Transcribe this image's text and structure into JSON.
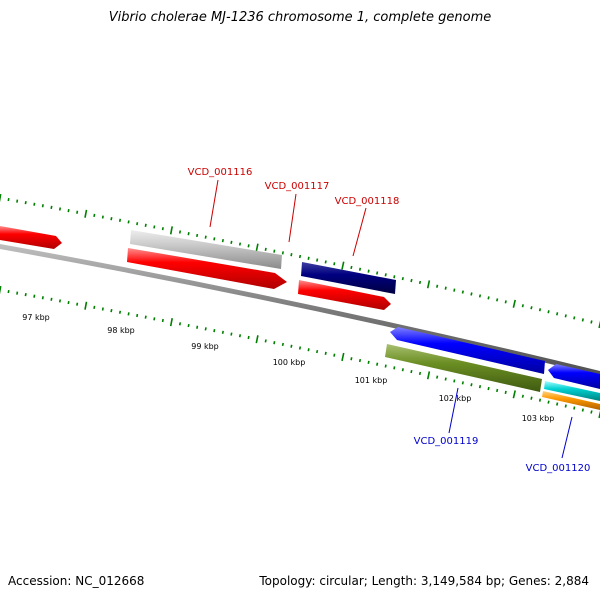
{
  "title": "Vibrio cholerae MJ-1236 chromosome 1, complete genome",
  "footer": {
    "accession": "Accession: NC_012668",
    "summary": "Topology: circular; Length: 3,149,584 bp; Genes: 2,884"
  },
  "colors": {
    "red_gene": "#ff0000",
    "grey_gene": "#c0c0c0",
    "navy_gene": "#000080",
    "blue_gene": "#0000ff",
    "olive_gene": "#6b8e23",
    "cyan_gene": "#00cccc",
    "orange_gene": "#ff9900",
    "tick_green": "#008000",
    "backbone": "#808080",
    "label_red": "#cc0000",
    "label_blue": "#0000cc"
  },
  "scale_labels": [
    "97 kbp",
    "98 kbp",
    "99 kbp",
    "100 kbp",
    "101 kbp",
    "102 kbp",
    "103 kbp"
  ],
  "gene_labels": {
    "vcd_001116": "VCD_001116",
    "vcd_001117": "VCD_001117",
    "vcd_001118": "VCD_001118",
    "vcd_001119": "VCD_001119",
    "vcd_001120": "VCD_001120"
  }
}
